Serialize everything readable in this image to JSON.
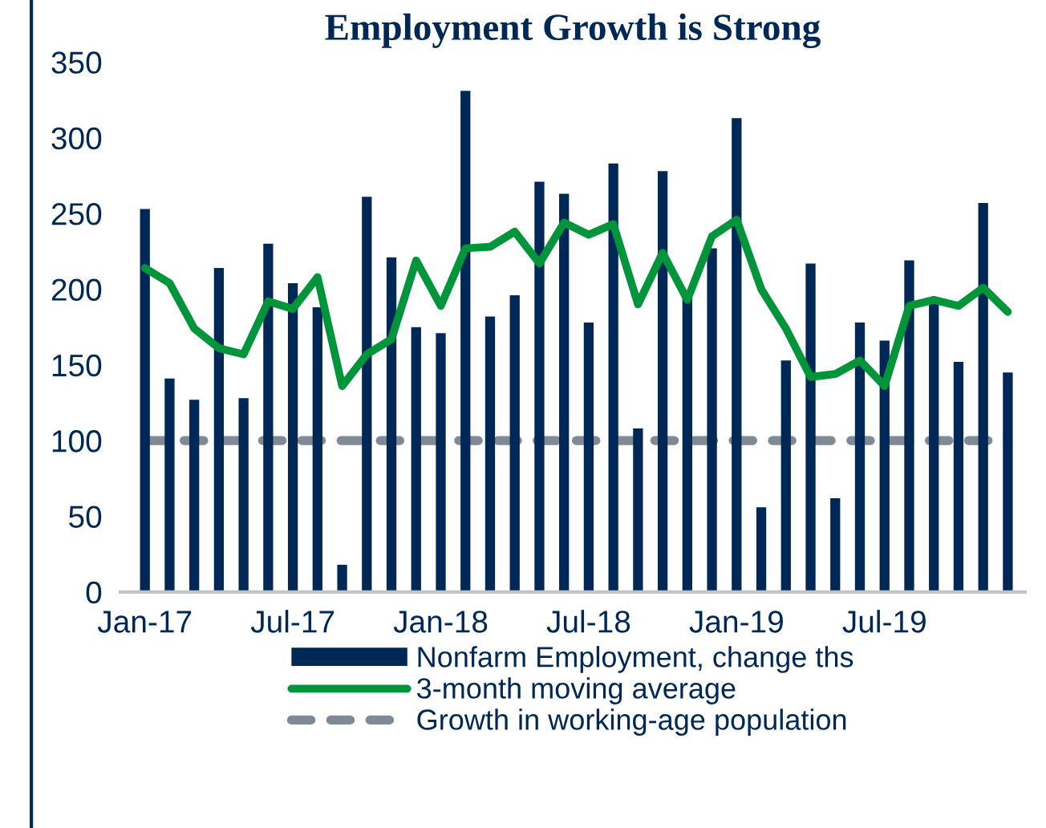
{
  "chart_data": {
    "type": "bar",
    "title": "Employment Growth is Strong",
    "categories": [
      "Jan-17",
      null,
      null,
      null,
      null,
      null,
      "Jul-17",
      null,
      null,
      null,
      null,
      null,
      "Jan-18",
      null,
      null,
      null,
      null,
      null,
      "Jul-18",
      null,
      null,
      null,
      null,
      null,
      "Jan-19",
      null,
      null,
      null,
      null,
      null,
      "Jul-19",
      null,
      null,
      null,
      null,
      null
    ],
    "series": [
      {
        "name": "Nonfarm Employment, change ths",
        "color": "#002856",
        "values": [
          253,
          141,
          127,
          214,
          128,
          230,
          204,
          188,
          18,
          261,
          221,
          175,
          171,
          331,
          182,
          196,
          271,
          263,
          178,
          283,
          108,
          278,
          196,
          227,
          313,
          56,
          153,
          217,
          62,
          178,
          166,
          219,
          193,
          152,
          257,
          145
        ]
      },
      {
        "name": "3-month moving average",
        "type": "line",
        "color": "#00953a",
        "line_style": "solid",
        "values": [
          214,
          204,
          174,
          161,
          157,
          192,
          187,
          208,
          136,
          157,
          167,
          219,
          189,
          227,
          228,
          238,
          217,
          244,
          236,
          243,
          190,
          224,
          193,
          235,
          246,
          200,
          174,
          142,
          144,
          153,
          136,
          189,
          193,
          189,
          201,
          185
        ]
      },
      {
        "name": "Growth in working-age population",
        "type": "line",
        "color": "#7f8a94",
        "line_style": "dashed",
        "values": [
          100,
          100,
          100,
          100,
          100,
          100,
          100,
          100,
          100,
          100,
          100,
          100,
          100,
          100,
          100,
          100,
          100,
          100,
          100,
          100,
          100,
          100,
          100,
          100,
          100,
          100,
          100,
          100,
          100,
          100,
          100,
          100,
          100,
          100,
          100,
          100
        ]
      }
    ],
    "ylim": [
      0,
      350
    ],
    "yticks": [
      0,
      50,
      100,
      150,
      200,
      250,
      300,
      350
    ],
    "grid": false,
    "legend": "bottom",
    "marker": "none"
  }
}
